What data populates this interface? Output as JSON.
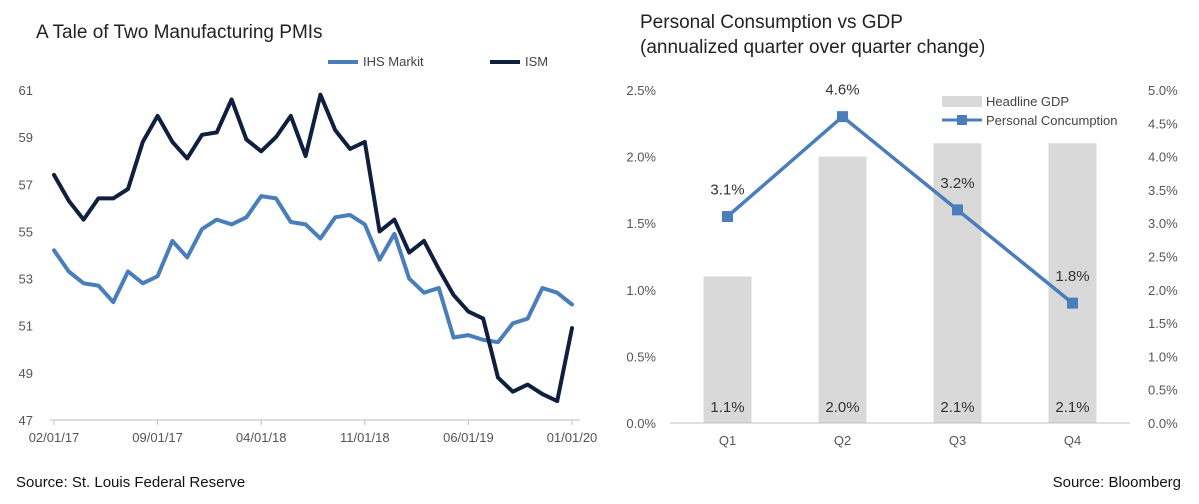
{
  "sources": {
    "left": "Source: St. Louis Federal Reserve",
    "right": "Source: Bloomberg"
  },
  "chart_data": [
    {
      "type": "line",
      "title": "A Tale of Two Manufacturing PMIs",
      "legend_position": "top-right",
      "ylim": [
        47,
        61
      ],
      "y_ticks": [
        "47",
        "49",
        "51",
        "53",
        "55",
        "57",
        "59",
        "61"
      ],
      "x_tick_labels": [
        "02/01/17",
        "09/01/17",
        "04/01/18",
        "11/01/18",
        "06/01/19",
        "01/01/20"
      ],
      "x_tick_index": [
        0,
        7,
        14,
        21,
        28,
        35
      ],
      "colors": {
        "IHS Markit": "#4a7ebb",
        "ISM": "#0f1f3d"
      },
      "series": [
        {
          "name": "IHS Markit",
          "values": [
            54.2,
            53.3,
            52.8,
            52.7,
            52.0,
            53.3,
            52.8,
            53.1,
            54.6,
            53.9,
            55.1,
            55.5,
            55.3,
            55.6,
            56.5,
            56.4,
            55.4,
            55.3,
            54.7,
            55.6,
            55.7,
            55.3,
            53.8,
            54.9,
            53.0,
            52.4,
            52.6,
            50.5,
            50.6,
            50.4,
            50.3,
            51.1,
            51.3,
            52.6,
            52.4,
            51.9
          ]
        },
        {
          "name": "ISM",
          "values": [
            57.4,
            56.3,
            55.5,
            56.4,
            56.4,
            56.8,
            58.8,
            59.9,
            58.8,
            58.1,
            59.1,
            59.2,
            60.6,
            58.9,
            58.4,
            59.0,
            59.9,
            58.2,
            60.8,
            59.3,
            58.5,
            58.8,
            55.0,
            55.5,
            54.1,
            54.6,
            53.4,
            52.3,
            51.6,
            51.3,
            48.8,
            48.2,
            48.5,
            48.1,
            47.8,
            50.9
          ]
        }
      ]
    },
    {
      "type": "bar",
      "title": [
        "Personal Consumption vs GDP",
        "(annualized quarter over quarter change)"
      ],
      "legend_position": "top-right",
      "categories": [
        "Q1",
        "Q2",
        "Q3",
        "Q4"
      ],
      "left_axis": {
        "ylim": [
          0,
          2.5
        ],
        "ticks": [
          "0.0%",
          "0.5%",
          "1.0%",
          "1.5%",
          "2.0%",
          "2.5%"
        ]
      },
      "right_axis": {
        "ylim": [
          0,
          5
        ],
        "ticks": [
          "0.0%",
          "0.5%",
          "1.0%",
          "1.5%",
          "2.0%",
          "2.5%",
          "3.0%",
          "3.5%",
          "4.0%",
          "4.5%",
          "5.0%"
        ]
      },
      "colors": {
        "Headline GDP": "#d9d9d9",
        "Personal Concumption": "#4a7ebb"
      },
      "series": [
        {
          "name": "Headline GDP",
          "kind": "bar",
          "axis": "left",
          "values": [
            1.1,
            2.0,
            2.1,
            2.1
          ],
          "labels": [
            "1.1%",
            "2.0%",
            "2.1%",
            "2.1%"
          ]
        },
        {
          "name": "Personal Concumption",
          "kind": "line",
          "axis": "right",
          "values": [
            3.1,
            4.6,
            3.2,
            1.8
          ],
          "labels": [
            "3.1%",
            "4.6%",
            "3.2%",
            "1.8%"
          ]
        }
      ]
    }
  ]
}
